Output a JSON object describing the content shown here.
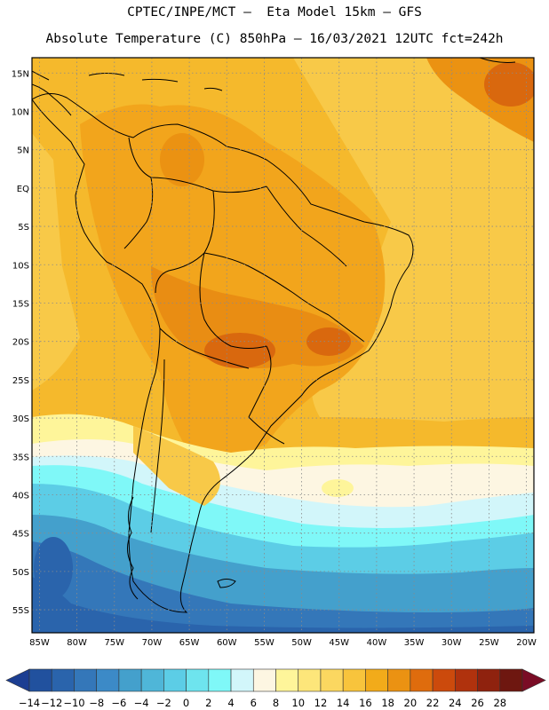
{
  "header": {
    "line1": "CPTEC/INPE/MCT –  Eta Model 15km – GFS",
    "line2": "Absolute Temperature (C) 850hPa – 16/03/2021 12UTC fct=242h"
  },
  "map": {
    "lon_labels": [
      "85W",
      "80W",
      "75W",
      "70W",
      "65W",
      "60W",
      "55W",
      "50W",
      "45W",
      "40W",
      "35W",
      "30W",
      "25W",
      "20W"
    ],
    "lat_labels": [
      "15N",
      "10N",
      "5N",
      "EQ",
      "5S",
      "10S",
      "15S",
      "20S",
      "25S",
      "30S",
      "35S",
      "40S",
      "45S",
      "50S",
      "55S"
    ],
    "lon_range": [
      -86,
      -19
    ],
    "lat_range": [
      17,
      -58
    ],
    "gridlines": "dotted",
    "field": "temperature at 850hPa"
  },
  "colorbar": {
    "labels": [
      "-14",
      "-12",
      "-10",
      "-8",
      "-6",
      "-4",
      "-2",
      "0",
      "2",
      "4",
      "6",
      "8",
      "10",
      "12",
      "14",
      "16",
      "18",
      "20",
      "22",
      "24",
      "26",
      "28"
    ],
    "colors": [
      "#1c3e92",
      "#21519e",
      "#2a64ac",
      "#3477b9",
      "#3c8ac7",
      "#44a0cc",
      "#4fb6d8",
      "#5ccde6",
      "#6ee4ee",
      "#7ff8f8",
      "#d2f6fa",
      "#fdf6e2",
      "#fef59a",
      "#fde67a",
      "#fbd760",
      "#f8c43c",
      "#f2ab1a",
      "#eb9212",
      "#df6c0d",
      "#cc4a0c",
      "#b0320d",
      "#8f220e",
      "#6e1710",
      "#7a0c25"
    ]
  }
}
